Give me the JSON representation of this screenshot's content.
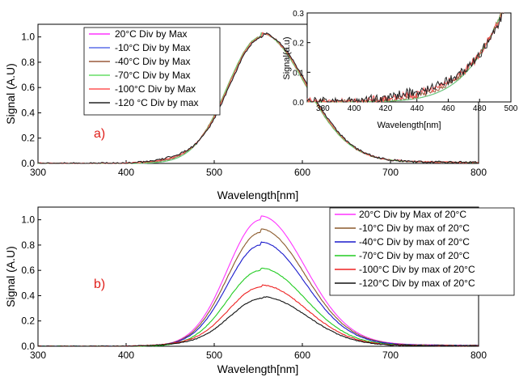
{
  "chart_data": [
    {
      "id": "a",
      "type": "line",
      "panel_label": "a)",
      "xlabel": "Wavelength[nm]",
      "ylabel": "Signal (A.U)",
      "xlim": [
        300,
        800
      ],
      "ylim": [
        0,
        1.1
      ],
      "xticks": [
        300,
        400,
        500,
        600,
        700,
        800
      ],
      "yticks": [
        0.0,
        0.2,
        0.4,
        0.6,
        0.8,
        1.0
      ],
      "legend_position": "top-left",
      "series": [
        {
          "name": "20°C Div by Max",
          "color": "#ff33ff",
          "peak": 1.0,
          "center": 553,
          "shoulder": 0.0,
          "noise": 0.0
        },
        {
          "name": "-10°C Div by Max",
          "color": "#5b6ee8",
          "peak": 1.0,
          "center": 553,
          "shoulder": 0.0,
          "noise": 0.0
        },
        {
          "name": "-40°C Div by Max",
          "color": "#9a5a3c",
          "peak": 1.0,
          "center": 553,
          "shoulder": 0.01,
          "noise": 0.004
        },
        {
          "name": "-70°C Div by Max",
          "color": "#66dd66",
          "peak": 1.0,
          "center": 553,
          "shoulder": 0.0,
          "noise": 0.0
        },
        {
          "name": "-100°C Div by Max",
          "color": "#ff5555",
          "peak": 1.0,
          "center": 554,
          "shoulder": 0.02,
          "noise": 0.006
        },
        {
          "name": "-120 °C Div by max",
          "color": "#222222",
          "peak": 1.0,
          "center": 555,
          "shoulder": 0.03,
          "noise": 0.008
        }
      ]
    },
    {
      "id": "a-inset",
      "type": "line",
      "xlabel": "Wavelength[nm]",
      "ylabel": "Signal(a.u)",
      "xlim": [
        370,
        500
      ],
      "ylim": [
        0,
        0.3
      ],
      "xticks": [
        380,
        400,
        420,
        440,
        460,
        480,
        500
      ],
      "yticks": [
        0.0,
        0.1,
        0.2,
        0.3
      ],
      "series_from": "a"
    },
    {
      "id": "b",
      "type": "line",
      "panel_label": "b)",
      "xlabel": "Wavelength[nm]",
      "ylabel": "Signal (A.U)",
      "xlim": [
        300,
        800
      ],
      "ylim": [
        0,
        1.1
      ],
      "xticks": [
        300,
        400,
        500,
        600,
        700,
        800
      ],
      "yticks": [
        0.0,
        0.2,
        0.4,
        0.6,
        0.8,
        1.0
      ],
      "legend_position": "top-right",
      "series": [
        {
          "name": "20°C Div by Max of 20°C",
          "color": "#ff33ff",
          "peak": 1.0,
          "center": 553,
          "shoulder": 0.0,
          "noise": 0.0
        },
        {
          "name": "-10°C Div by max of 20°C",
          "color": "#8b5a2b",
          "peak": 0.9,
          "center": 553,
          "shoulder": 0.0,
          "noise": 0.002
        },
        {
          "name": "-40°C Div by max of 20°C",
          "color": "#1a1acc",
          "peak": 0.8,
          "center": 553,
          "shoulder": 0.0,
          "noise": 0.002
        },
        {
          "name": "-70°C  Div by max of 20°C",
          "color": "#22cc22",
          "peak": 0.6,
          "center": 553,
          "shoulder": 0.0,
          "noise": 0.002
        },
        {
          "name": "-100°C Div by max of 20°C",
          "color": "#ee2222",
          "peak": 0.47,
          "center": 554,
          "shoulder": 0.01,
          "noise": 0.003
        },
        {
          "name": "-120°C Div by max of 20°C",
          "color": "#111111",
          "peak": 0.38,
          "center": 555,
          "shoulder": 0.01,
          "noise": 0.003
        }
      ]
    }
  ]
}
